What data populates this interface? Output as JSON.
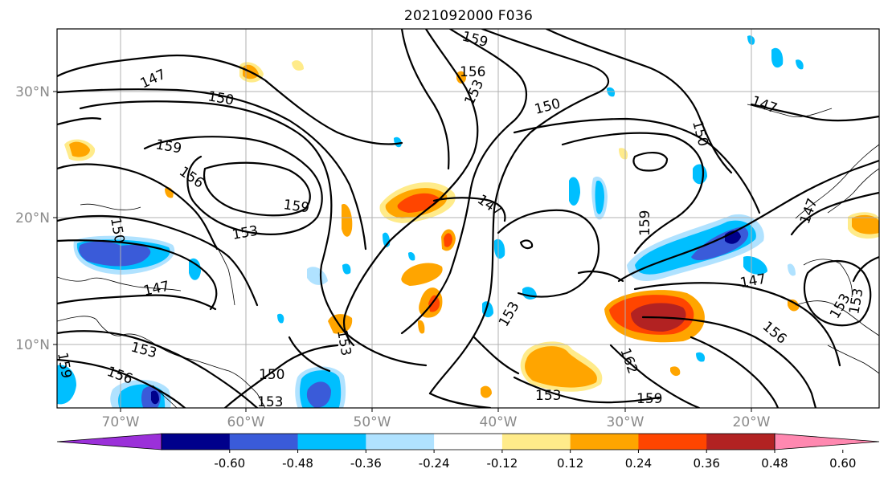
{
  "title": "2021092000 F036",
  "map": {
    "lon_range": [
      -75,
      -9
    ],
    "lat_range": [
      5,
      35
    ],
    "x_ticks": [
      {
        "lon": -70,
        "label": "70°W"
      },
      {
        "lon": -60,
        "label": "60°W"
      },
      {
        "lon": -50,
        "label": "50°W"
      },
      {
        "lon": -40,
        "label": "40°W"
      },
      {
        "lon": -30,
        "label": "30°W"
      },
      {
        "lon": -20,
        "label": "20°W"
      }
    ],
    "y_ticks": [
      {
        "lat": 30,
        "label": "30°N"
      },
      {
        "lat": 20,
        "label": "20°N"
      },
      {
        "lat": 10,
        "label": "10°N"
      }
    ],
    "grid": true,
    "contour_labels": [
      "147",
      "150",
      "153",
      "156",
      "159",
      "162"
    ]
  },
  "colorbar": {
    "ticks": [
      "-0.60",
      "-0.48",
      "-0.36",
      "-0.24",
      "-0.12",
      "0.12",
      "0.24",
      "0.36",
      "0.48",
      "0.60"
    ],
    "colors": [
      "#9b30d9",
      "#00008b",
      "#3a5bd9",
      "#00bfff",
      "#b0e2ff",
      "#ffffff",
      "#ffeb8a",
      "#ffa500",
      "#ff4500",
      "#b22222",
      "#ff88b0"
    ]
  }
}
